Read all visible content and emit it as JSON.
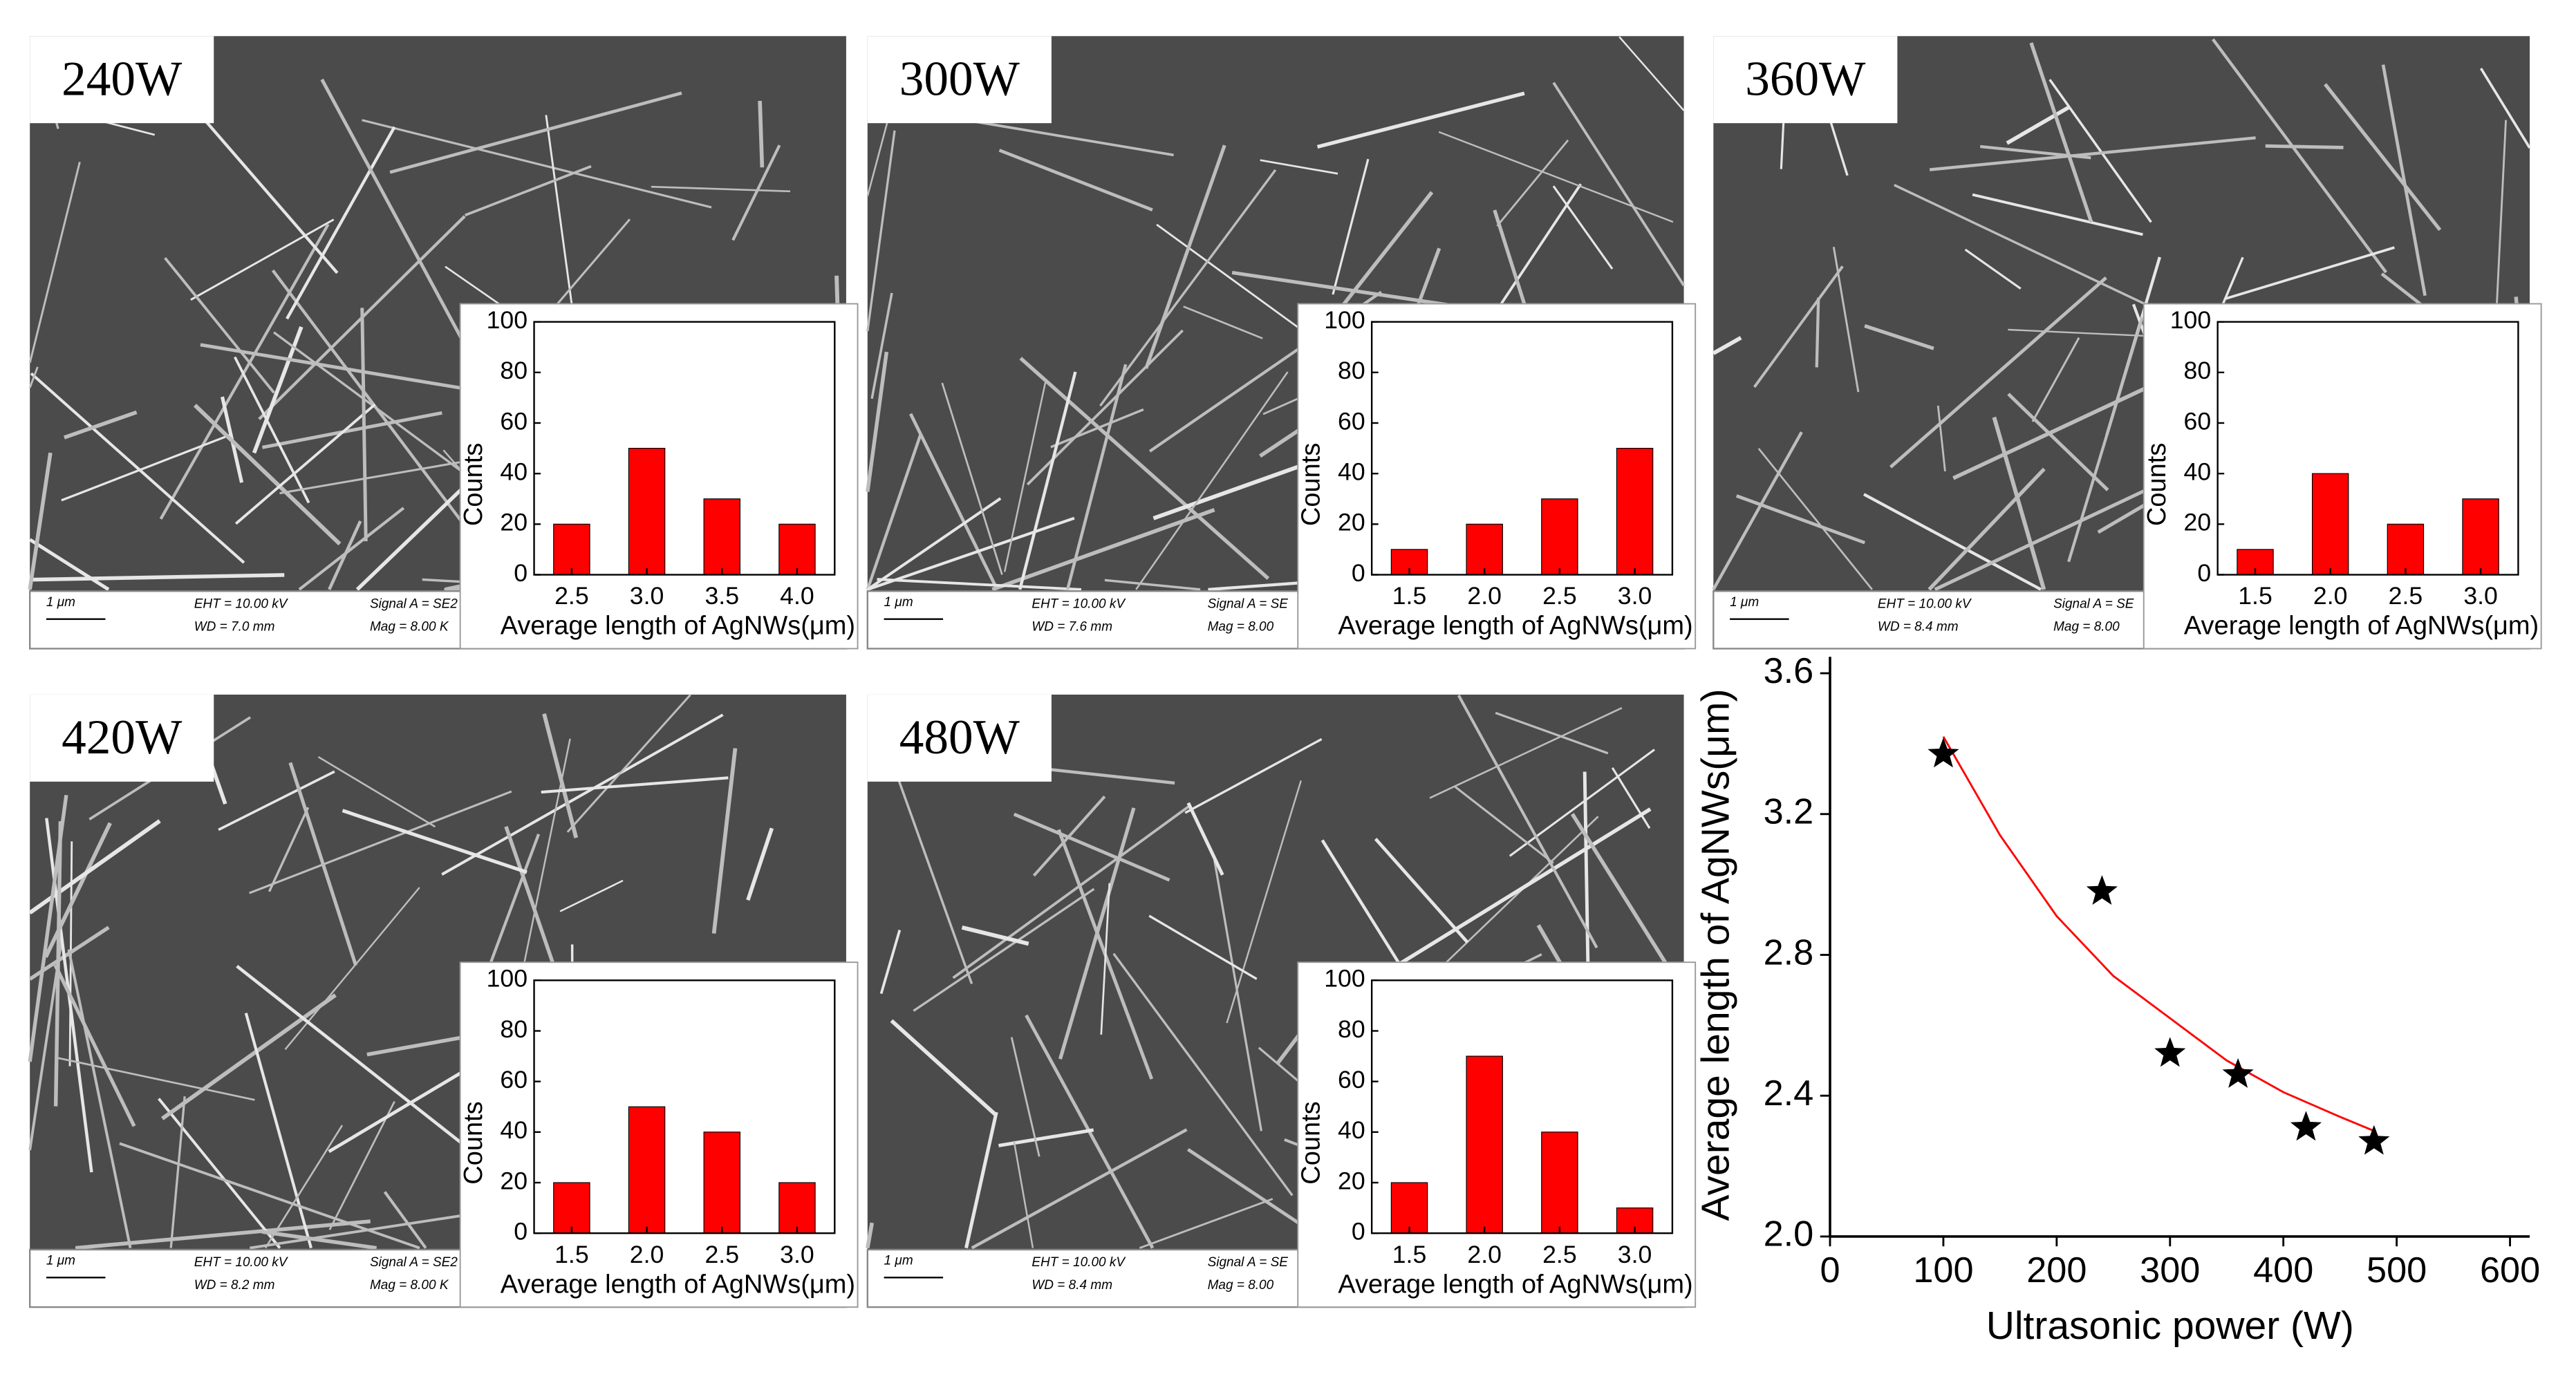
{
  "chart_data": [
    {
      "type": "bar",
      "panel_label": "240W",
      "categories": [
        "2.5",
        "3.0",
        "3.5",
        "4.0"
      ],
      "values": [
        20,
        50,
        30,
        20
      ],
      "color": "#ff0000",
      "ylim": [
        0,
        100
      ],
      "yticks": [
        0,
        20,
        40,
        60,
        80,
        100
      ],
      "xlabel": "Average length of AgNWs(μm)",
      "ylabel": "Counts",
      "info": {
        "scale": "1 μm",
        "eht": "EHT = 10.00 kV",
        "wd": "WD = 7.0 mm",
        "signal": "Signal A = SE2",
        "mag": "Mag = 8.00 K"
      }
    },
    {
      "type": "bar",
      "panel_label": "300W",
      "categories": [
        "1.5",
        "2.0",
        "2.5",
        "3.0"
      ],
      "values": [
        10,
        20,
        30,
        50
      ],
      "color": "#ff0000",
      "ylim": [
        0,
        100
      ],
      "yticks": [
        0,
        20,
        40,
        60,
        80,
        100
      ],
      "xlabel": "Average length of AgNWs(μm)",
      "ylabel": "Counts",
      "info": {
        "scale": "1 μm",
        "eht": "EHT = 10.00 kV",
        "wd": "WD = 7.6 mm",
        "signal": "Signal A = SE",
        "mag": "Mag = 8.00"
      }
    },
    {
      "type": "bar",
      "panel_label": "360W",
      "categories": [
        "1.5",
        "2.0",
        "2.5",
        "3.0"
      ],
      "values": [
        10,
        40,
        20,
        30
      ],
      "color": "#ff0000",
      "ylim": [
        0,
        100
      ],
      "yticks": [
        0,
        20,
        40,
        60,
        80,
        100
      ],
      "xlabel": "Average length of AgNWs(μm)",
      "ylabel": "Counts",
      "info": {
        "scale": "1 μm",
        "eht": "EHT = 10.00 kV",
        "wd": "WD = 8.4 mm",
        "signal": "Signal A = SE",
        "mag": "Mag = 8.00"
      }
    },
    {
      "type": "bar",
      "panel_label": "420W",
      "categories": [
        "1.5",
        "2.0",
        "2.5",
        "3.0"
      ],
      "values": [
        20,
        50,
        40,
        20
      ],
      "color": "#ff0000",
      "ylim": [
        0,
        100
      ],
      "yticks": [
        0,
        20,
        40,
        60,
        80,
        100
      ],
      "xlabel": "Average length of AgNWs(μm)",
      "ylabel": "Counts",
      "info": {
        "scale": "1 μm",
        "eht": "EHT = 10.00 kV",
        "wd": "WD = 8.2 mm",
        "signal": "Signal A = SE2",
        "mag": "Mag = 8.00 K"
      }
    },
    {
      "type": "bar",
      "panel_label": "480W",
      "categories": [
        "1.5",
        "2.0",
        "2.5",
        "3.0"
      ],
      "values": [
        20,
        70,
        40,
        10
      ],
      "color": "#ff0000",
      "ylim": [
        0,
        100
      ],
      "yticks": [
        0,
        20,
        40,
        60,
        80,
        100
      ],
      "xlabel": "Average length of AgNWs(μm)",
      "ylabel": "Counts",
      "info": {
        "scale": "1 μm",
        "eht": "EHT = 10.00 kV",
        "wd": "WD = 8.4 mm",
        "signal": "Signal A = SE",
        "mag": "Mag = 8.00"
      }
    },
    {
      "type": "scatter",
      "x": [
        100,
        240,
        300,
        360,
        420,
        480
      ],
      "values": [
        3.37,
        2.98,
        2.52,
        2.46,
        2.31,
        2.27
      ],
      "color": "#000000",
      "fit": {
        "color": "#ff0000",
        "x": [
          100,
          150,
          200,
          250,
          300,
          350,
          400,
          450,
          480
        ],
        "values": [
          3.42,
          3.14,
          2.91,
          2.74,
          2.62,
          2.5,
          2.41,
          2.34,
          2.3
        ]
      },
      "xlim": [
        0,
        600
      ],
      "xticks": [
        0,
        100,
        200,
        300,
        400,
        500,
        600
      ],
      "ylim": [
        2.0,
        3.6
      ],
      "yticks": [
        {
          "value": 2.0,
          "label": "2.0"
        },
        2.4,
        2.8,
        3.2,
        3.6
      ],
      "xlabel": "Ultrasonic power (W)",
      "ylabel": "Average length of AgNWs(μm)"
    }
  ]
}
